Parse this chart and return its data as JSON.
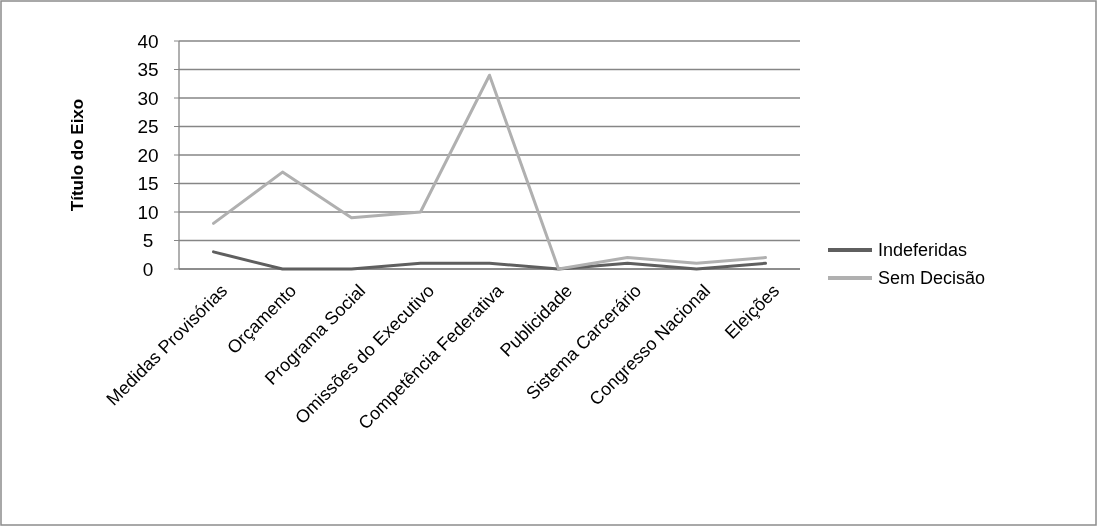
{
  "chart_data": {
    "type": "line",
    "ylabel": "Título do Eixo",
    "categories": [
      "Medidas Provisórias",
      "Orçamento",
      "Programa Social",
      "Omissões do Executivo",
      "Competência Federativa",
      "Publicidade",
      "Sistema Carcerário",
      "Congresso Nacional",
      "Eleições"
    ],
    "series": [
      {
        "name": "Indeferidas",
        "color": "#5f5f5f",
        "values": [
          3,
          0,
          0,
          1,
          1,
          0,
          1,
          0,
          1
        ]
      },
      {
        "name": "Sem Decisão",
        "color": "#b0b0b0",
        "values": [
          8,
          17,
          9,
          10,
          34,
          0,
          2,
          1,
          2
        ]
      }
    ],
    "ylim": [
      0,
      40
    ],
    "yticks": [
      0,
      5,
      10,
      15,
      20,
      25,
      30,
      35,
      40
    ],
    "grid": "y",
    "legend": "right",
    "marker": "none",
    "line_style": "solid"
  }
}
